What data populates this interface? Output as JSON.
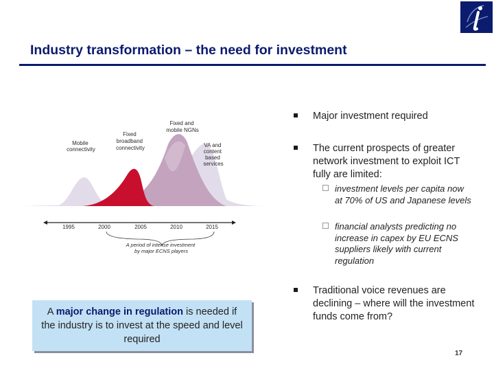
{
  "title": "Industry transformation – the need for investment",
  "diagram": {
    "curve_labels": {
      "mobile": [
        "Mobile",
        "connectivity"
      ],
      "broadband": [
        "Fixed",
        "broadband",
        "connectivity"
      ],
      "ngn": [
        "Fixed and",
        "mobile NGNs"
      ],
      "va": [
        "VA and",
        "content",
        "based",
        "services"
      ]
    },
    "years": [
      "1995",
      "2000",
      "2005",
      "2010",
      "2015"
    ],
    "caption": [
      "A period of intense investment",
      "by major ECNS players"
    ]
  },
  "callout": {
    "pre": "A ",
    "bold": "major change in regulation",
    "post": " is needed if the industry is to invest at the speed and level required"
  },
  "bullets": [
    {
      "text": "Major investment required"
    },
    {
      "text": "The current prospects of greater network investment to exploit ICT fully are limited:",
      "sub": [
        "investment levels per capita now at 70% of US and Japanese levels",
        "financial analysts predicting no increase in capex by EU ECNS suppliers likely with current regulation"
      ]
    },
    {
      "text": "Traditional voice revenues are declining – where will the investment funds come from?"
    }
  ],
  "page_number": "17",
  "colors": {
    "navy": "#0b1b6e",
    "crimson": "#c8102e",
    "mauve": "#c4a3bf",
    "lavender": "#e2dcea",
    "callout_bg": "#c3e1f5"
  }
}
